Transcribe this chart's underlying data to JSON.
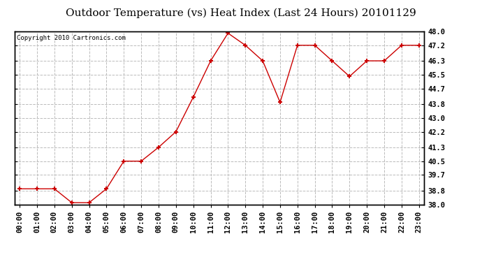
{
  "title": "Outdoor Temperature (vs) Heat Index (Last 24 Hours) 20101129",
  "copyright_text": "Copyright 2010 Cartronics.com",
  "x_labels": [
    "00:00",
    "01:00",
    "02:00",
    "03:00",
    "04:00",
    "05:00",
    "06:00",
    "07:00",
    "08:00",
    "09:00",
    "10:00",
    "11:00",
    "12:00",
    "13:00",
    "14:00",
    "15:00",
    "16:00",
    "17:00",
    "18:00",
    "19:00",
    "20:00",
    "21:00",
    "22:00",
    "23:00"
  ],
  "y_values": [
    38.9,
    38.9,
    38.9,
    38.1,
    38.1,
    38.9,
    40.5,
    40.5,
    41.3,
    42.2,
    44.2,
    46.3,
    47.9,
    47.2,
    46.3,
    43.9,
    47.2,
    47.2,
    46.3,
    45.4,
    46.3,
    46.3,
    47.2,
    47.2
  ],
  "ylim_min": 38.0,
  "ylim_max": 48.0,
  "yticks": [
    38.0,
    38.8,
    39.7,
    40.5,
    41.3,
    42.2,
    43.0,
    43.8,
    44.7,
    45.5,
    46.3,
    47.2,
    48.0
  ],
  "line_color": "#cc0000",
  "marker": "+",
  "marker_color": "#cc0000",
  "bg_color": "#ffffff",
  "plot_bg_color": "#ffffff",
  "grid_color": "#bbbbbb",
  "title_fontsize": 11,
  "copyright_fontsize": 6.5,
  "tick_fontsize": 7.5
}
